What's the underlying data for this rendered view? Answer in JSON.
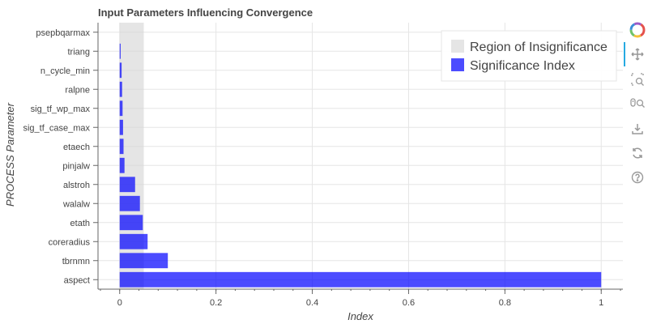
{
  "chart_data": {
    "type": "bar",
    "orientation": "horizontal",
    "title": "Input Parameters Influencing Convergence",
    "xlabel": "Index",
    "ylabel": "PROCESS Parameter",
    "xlim": [
      -0.045,
      1.045
    ],
    "x_ticks": [
      0,
      0.2,
      0.4,
      0.6,
      0.8,
      1
    ],
    "x_tick_labels": [
      "0",
      "0.2",
      "0.4",
      "0.6",
      "0.8",
      "1"
    ],
    "grid": true,
    "legend_position": "top-right",
    "categories": [
      "aspect",
      "tbrnmn",
      "coreradius",
      "etath",
      "walalw",
      "alstroh",
      "pinjalw",
      "etaech",
      "sig_tf_case_max",
      "sig_tf_wp_max",
      "ralpne",
      "n_cycle_min",
      "triang",
      "psepbqarmax"
    ],
    "series": [
      {
        "name": "Significance Index",
        "color": "#0000ff",
        "values": [
          1.0,
          0.1,
          0.058,
          0.048,
          0.042,
          0.032,
          0.01,
          0.008,
          0.007,
          0.006,
          0.005,
          0.004,
          0.002,
          0.0
        ]
      }
    ],
    "regions": [
      {
        "name": "Region of Insignificance",
        "color": "#d3d3d3",
        "x_range": [
          0,
          0.05
        ]
      }
    ]
  },
  "toolbar": {
    "tools": [
      {
        "name": "bokeh-logo-icon",
        "interactable": false
      },
      {
        "name": "pan-tool-icon",
        "interactable": true
      },
      {
        "name": "box-zoom-tool-icon",
        "interactable": true
      },
      {
        "name": "wheel-zoom-tool-icon",
        "interactable": true
      },
      {
        "name": "save-tool-icon",
        "interactable": true
      },
      {
        "name": "reset-tool-icon",
        "interactable": true
      },
      {
        "name": "help-tool-icon",
        "interactable": true
      }
    ]
  }
}
